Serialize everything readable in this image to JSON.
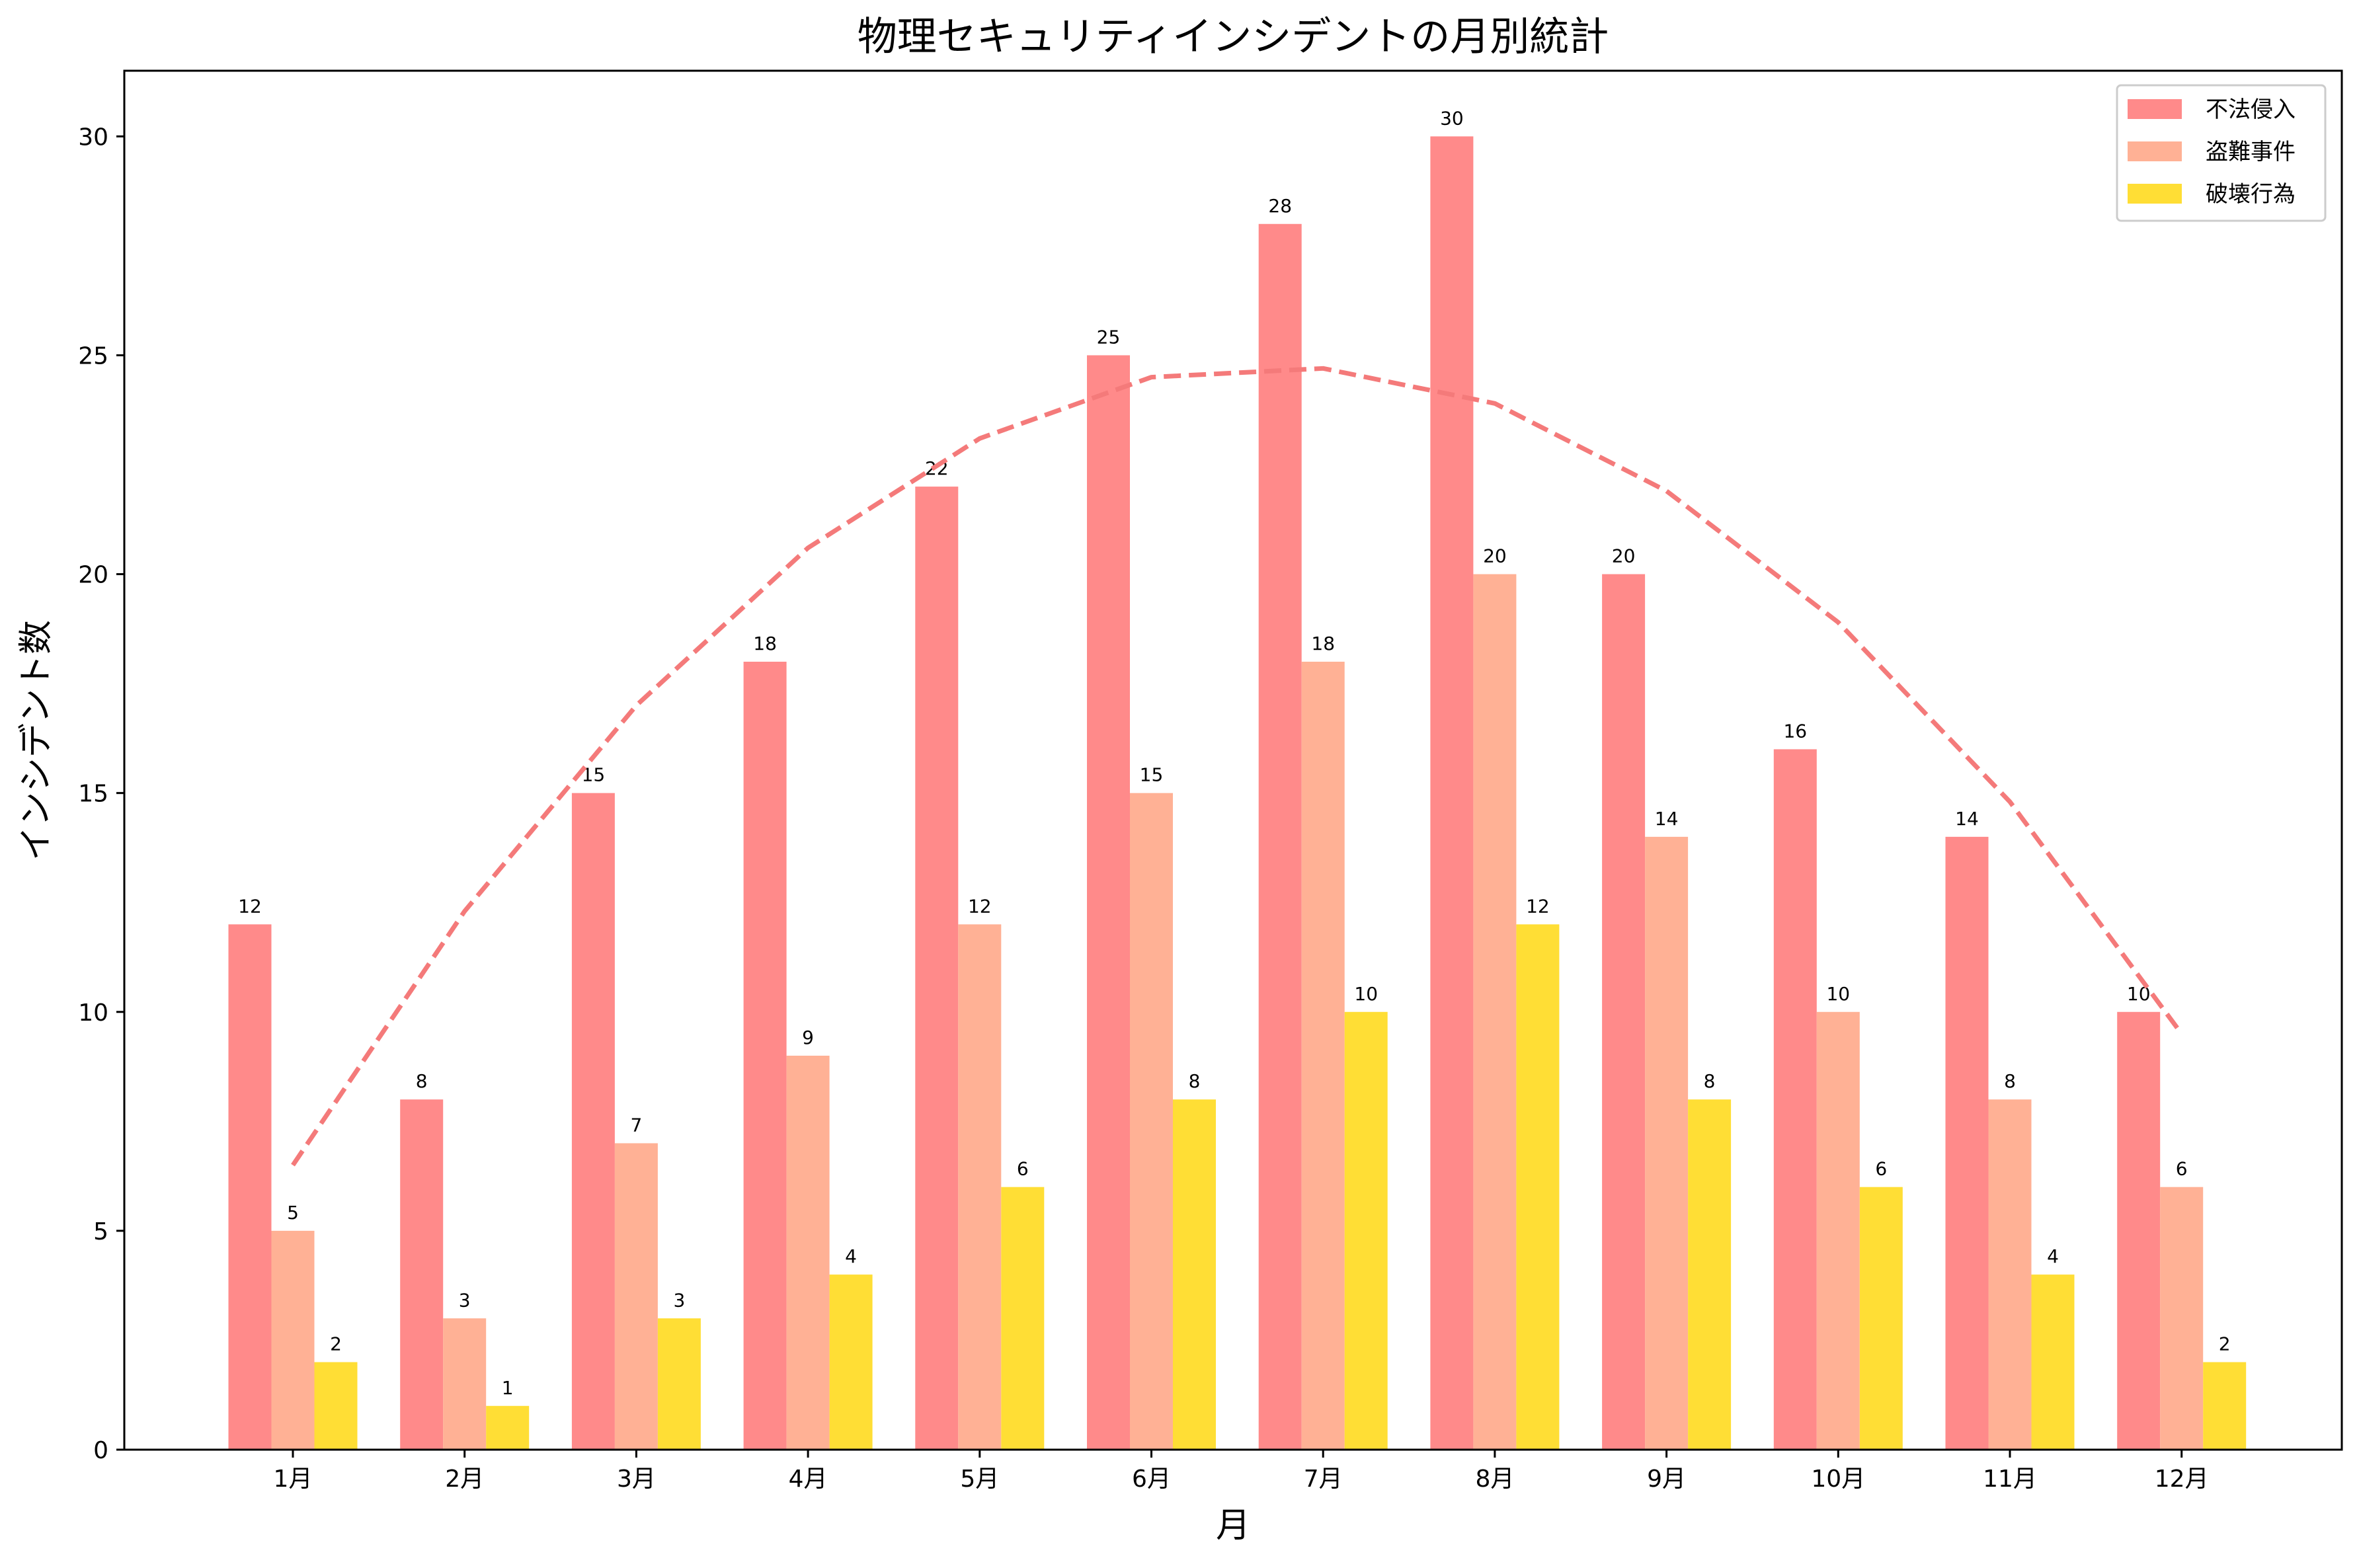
{
  "chart_data": {
    "type": "bar",
    "title": "物理セキュリティインシデントの月別統計",
    "xlabel": "月",
    "ylabel": "インシデント数",
    "categories": [
      "1月",
      "2月",
      "3月",
      "4月",
      "5月",
      "6月",
      "7月",
      "8月",
      "9月",
      "10月",
      "11月",
      "12月"
    ],
    "ylim": [
      0,
      31.5
    ],
    "yticks": [
      0,
      5,
      10,
      15,
      20,
      25,
      30
    ],
    "grid": false,
    "legend_position": "top-right",
    "series": [
      {
        "name": "不法侵入",
        "color": "#ff8a8a",
        "values": [
          12,
          8,
          15,
          18,
          22,
          25,
          28,
          30,
          20,
          16,
          14,
          10
        ]
      },
      {
        "name": "盗難事件",
        "color": "#ffb195",
        "values": [
          5,
          3,
          7,
          9,
          12,
          15,
          18,
          20,
          14,
          10,
          8,
          6
        ]
      },
      {
        "name": "破壊行為",
        "color": "#ffde35",
        "values": [
          2,
          1,
          3,
          4,
          6,
          8,
          10,
          12,
          8,
          6,
          4,
          2
        ]
      }
    ],
    "trend_line": {
      "style": "dashed",
      "color": "#f47a7a",
      "values": [
        6.5,
        12.3,
        17.0,
        20.6,
        23.1,
        24.5,
        24.7,
        23.9,
        21.9,
        18.9,
        14.8,
        9.5
      ]
    }
  }
}
